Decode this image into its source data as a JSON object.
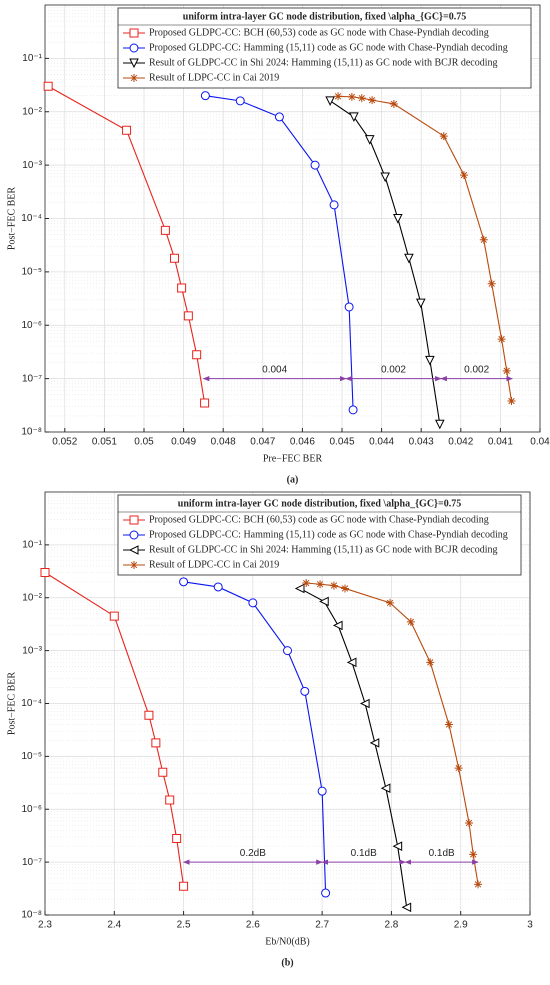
{
  "chart_data": [
    {
      "type": "line",
      "legend_title": "uniform intra-layer GC node distribution, fixed \\alpha_{GC}=0.75",
      "x_label": "Pre−FEC BER",
      "y_label": "Post−FEC BER",
      "caption": "(a)",
      "y_log": true,
      "grid": true,
      "legend": "top-right",
      "xlim": [
        0.0525,
        0.04
      ],
      "xticks": [
        0.052,
        0.051,
        0.05,
        0.049,
        0.048,
        0.047,
        0.046,
        0.045,
        0.044,
        0.043,
        0.042,
        0.041,
        0.04
      ],
      "ylim": [
        1e-08,
        1
      ],
      "yticks": [
        {
          "value": 1e-08,
          "label": "10⁻⁸"
        },
        {
          "value": 1e-07,
          "label": "10⁻⁷"
        },
        {
          "value": 1e-06,
          "label": "10⁻⁶"
        },
        {
          "value": 1e-05,
          "label": "10⁻⁵"
        },
        {
          "value": 0.0001,
          "label": "10⁻⁴"
        },
        {
          "value": 0.001,
          "label": "10⁻³"
        },
        {
          "value": 0.01,
          "label": "10⁻²"
        },
        {
          "value": 0.1,
          "label": "10⁻¹"
        }
      ],
      "series": [
        {
          "name": "Proposed GLDPC-CC: BCH (60,53) code as GC node with Chase-Pyndiah decoding",
          "color": "#e8231c",
          "marker": "square",
          "x": [
            0.05242,
            0.05044,
            0.04946,
            0.04923,
            0.04905,
            0.04888,
            0.04867,
            0.04847
          ],
          "values": [
            0.03,
            0.0045,
            6e-05,
            1.8e-05,
            5e-06,
            1.5e-06,
            2.8e-07,
            3.5e-08
          ]
        },
        {
          "name": "Proposed GLDPC-CC: Hamming (15,11) code as GC node with Chase-Pyndiah decoding",
          "color": "#0a14f0",
          "marker": "circle",
          "x": [
            0.04845,
            0.04757,
            0.04658,
            0.04568,
            0.0452,
            0.04482,
            0.04472
          ],
          "values": [
            0.02,
            0.016,
            0.008,
            0.001,
            0.00018,
            2.2e-06,
            2.6e-08
          ]
        },
        {
          "name": "Result of GLDPC-CC in Shi 2024: Hamming (15,11) as GC node with BCJR decoding",
          "color": "#000000",
          "marker": "triangle-down",
          "x": [
            0.0453,
            0.0447,
            0.0443,
            0.04391,
            0.04359,
            0.04331,
            0.04301,
            0.04278,
            0.04253
          ],
          "values": [
            0.016,
            0.008,
            0.003,
            0.0006,
            0.0001,
            1.8e-05,
            2.6e-06,
            2.2e-07,
            1.4e-08
          ]
        },
        {
          "name": "Result of LDPC-CC in Cai 2019",
          "color": "#b84a0e",
          "marker": "star",
          "x": [
            0.0451,
            0.04475,
            0.0445,
            0.04424,
            0.04369,
            0.04243,
            0.04192,
            0.04142,
            0.04122,
            0.04097,
            0.04084,
            0.04072
          ],
          "values": [
            0.0195,
            0.019,
            0.018,
            0.0165,
            0.014,
            0.0035,
            0.00065,
            4e-05,
            6e-06,
            5.5e-07,
            1.4e-07,
            3.8e-08
          ]
        }
      ],
      "annotation_color": "#8a3fa6",
      "annotations": [
        {
          "text": "0.004",
          "x_start": 0.0485,
          "x_end": 0.0449,
          "y": 1e-07
        },
        {
          "text": "0.002",
          "x_start": 0.0449,
          "x_end": 0.0425,
          "y": 1e-07
        },
        {
          "text": "0.002",
          "x_start": 0.0425,
          "x_end": 0.0407,
          "y": 1e-07
        }
      ]
    },
    {
      "type": "line",
      "legend_title": "uniform intra-layer GC node distribution, fixed \\alpha_{GC}=0.75",
      "x_label": "Eb/N0(dB)",
      "y_label": "Post−FEC BER",
      "caption": "(b)",
      "y_log": true,
      "grid": true,
      "legend": "top-right",
      "xlim": [
        2.3,
        3
      ],
      "xticks": [
        2.3,
        2.4,
        2.5,
        2.6,
        2.7,
        2.8,
        2.9,
        3
      ],
      "ylim": [
        1e-08,
        1
      ],
      "yticks": [
        {
          "value": 1e-08,
          "label": "10⁻⁸"
        },
        {
          "value": 1e-07,
          "label": "10⁻⁷"
        },
        {
          "value": 1e-06,
          "label": "10⁻⁶"
        },
        {
          "value": 1e-05,
          "label": "10⁻⁵"
        },
        {
          "value": 0.0001,
          "label": "10⁻⁴"
        },
        {
          "value": 0.001,
          "label": "10⁻³"
        },
        {
          "value": 0.01,
          "label": "10⁻²"
        },
        {
          "value": 0.1,
          "label": "10⁻¹"
        }
      ],
      "series": [
        {
          "name": "Proposed GLDPC-CC: BCH (60,53) code as GC node with Chase-Pyndiah decoding",
          "color": "#e8231c",
          "marker": "square",
          "x": [
            2.3,
            2.4,
            2.45,
            2.46,
            2.47,
            2.48,
            2.49,
            2.5
          ],
          "values": [
            0.03,
            0.0045,
            6e-05,
            1.8e-05,
            5e-06,
            1.5e-06,
            2.8e-07,
            3.5e-08
          ]
        },
        {
          "name": "Proposed GLDPC-CC: Hamming (15,11) code as GC node with Chase-Pyndiah decoding",
          "color": "#0a14f0",
          "marker": "circle",
          "x": [
            2.5,
            2.55,
            2.6,
            2.65,
            2.675,
            2.7,
            2.705
          ],
          "values": [
            0.02,
            0.016,
            0.008,
            0.001,
            0.00017,
            2.2e-06,
            2.6e-08
          ]
        },
        {
          "name": "Result of GLDPC-CC in Shi 2024: Hamming (15,11) as GC node with BCJR decoding",
          "color": "#000000",
          "marker": "triangle-left",
          "x": [
            2.668,
            2.703,
            2.723,
            2.743,
            2.762,
            2.776,
            2.792,
            2.809,
            2.822
          ],
          "values": [
            0.015,
            0.0085,
            0.003,
            0.0006,
            0.0001,
            1.8e-05,
            2.5e-06,
            2e-07,
            1.4e-08
          ]
        },
        {
          "name": "Result of LDPC-CC in Cai 2019",
          "color": "#b84a0e",
          "marker": "star",
          "x": [
            2.677,
            2.697,
            2.717,
            2.733,
            2.798,
            2.828,
            2.856,
            2.883,
            2.897,
            2.912,
            2.918,
            2.925
          ],
          "values": [
            0.019,
            0.018,
            0.017,
            0.015,
            0.008,
            0.0035,
            0.0006,
            4e-05,
            6e-06,
            5.5e-07,
            1.4e-07,
            3.8e-08
          ]
        }
      ],
      "annotation_color": "#8a3fa6",
      "annotations": [
        {
          "text": "0.2dB",
          "x_start": 2.5,
          "x_end": 2.7,
          "y": 1e-07
        },
        {
          "text": "0.1dB",
          "x_start": 2.7,
          "x_end": 2.82,
          "y": 1e-07
        },
        {
          "text": "0.1dB",
          "x_start": 2.82,
          "x_end": 2.925,
          "y": 1e-07
        }
      ]
    }
  ]
}
